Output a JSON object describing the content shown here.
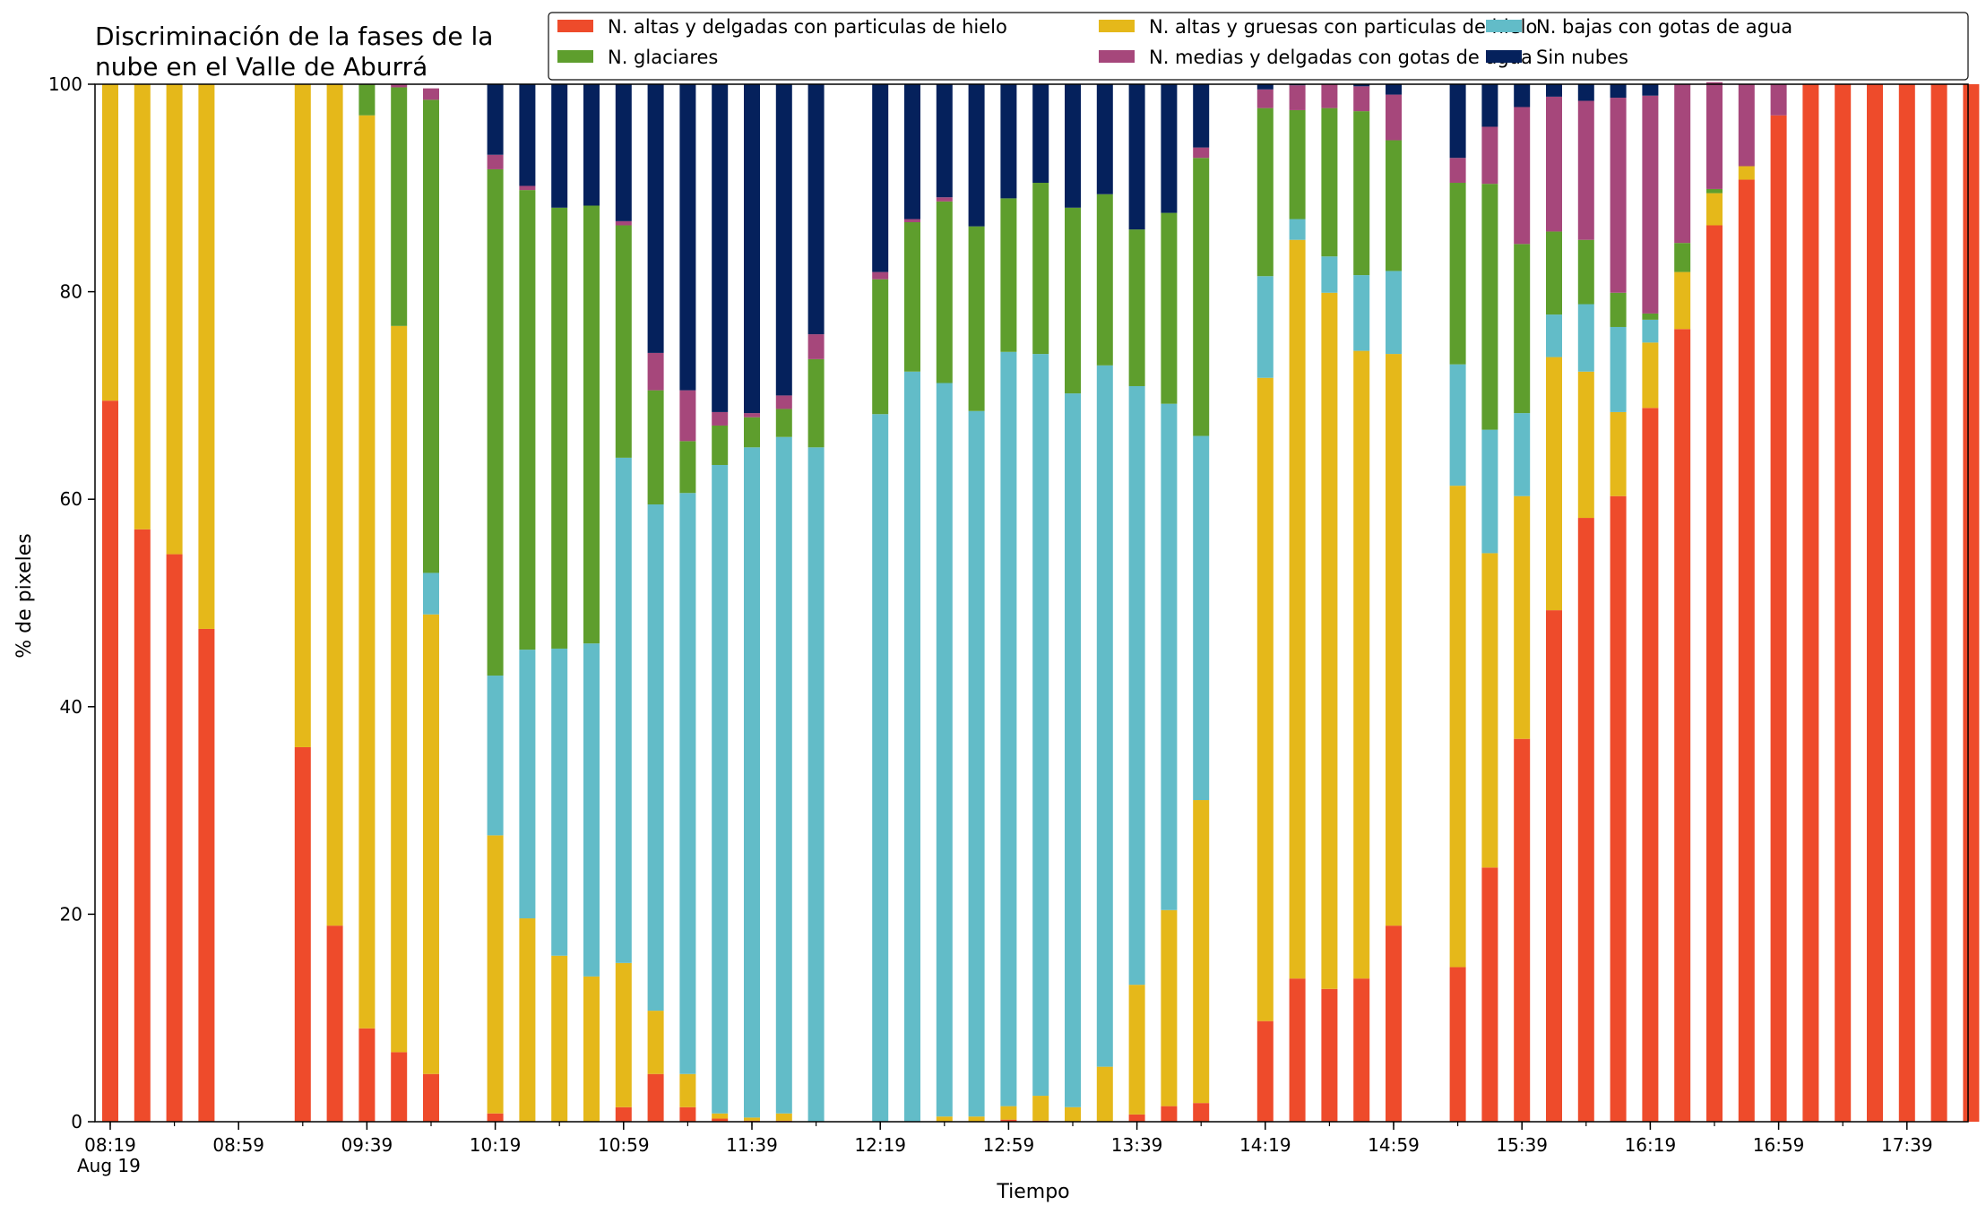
{
  "chart_data": {
    "type": "bar",
    "stacked": true,
    "title_lines": [
      "Discriminación de la fases de la",
      "nube en el Valle de Aburrá"
    ],
    "xlabel": "Tiempo",
    "ylabel": "% de pixeles",
    "ylim": [
      0,
      100
    ],
    "yticks": [
      "0",
      "20",
      "40",
      "60",
      "80",
      "100"
    ],
    "xticks": [
      {
        "label": "08:19",
        "sub": "Aug 19",
        "slot": 0
      },
      {
        "label": "08:59",
        "slot": 4
      },
      {
        "label": "09:39",
        "slot": 8
      },
      {
        "label": "10:19",
        "slot": 12
      },
      {
        "label": "10:59",
        "slot": 16
      },
      {
        "label": "11:39",
        "slot": 20
      },
      {
        "label": "12:19",
        "slot": 24
      },
      {
        "label": "12:59",
        "slot": 28
      },
      {
        "label": "13:39",
        "slot": 32
      },
      {
        "label": "14:19",
        "slot": 36
      },
      {
        "label": "14:59",
        "slot": 40
      },
      {
        "label": "15:39",
        "slot": 44
      },
      {
        "label": "16:19",
        "slot": 48
      },
      {
        "label": "16:59",
        "slot": 52
      },
      {
        "label": "17:39",
        "slot": 56
      }
    ],
    "x_slots": 59,
    "minutes_per_slot": 10,
    "legend_location": "upper right",
    "series": [
      {
        "name": "N. altas y delgadas con particulas de hielo",
        "color": "#ee4b2b",
        "values": [
          69.5,
          57.1,
          54.7,
          47.5,
          null,
          null,
          36.1,
          18.9,
          9.0,
          6.7,
          4.6,
          null,
          0.8,
          0,
          0,
          0,
          1.4,
          4.6,
          1.4,
          0.3,
          0.1,
          0.1,
          0,
          null,
          0,
          0,
          0,
          0,
          0.2,
          0.1,
          0,
          0,
          0.7,
          1.5,
          1.8,
          null,
          9.7,
          13.8,
          12.8,
          13.8,
          18.9,
          null,
          14.9,
          24.5,
          36.9,
          49.3,
          58.2,
          60.3,
          68.8,
          76.4,
          86.4,
          90.8,
          97.0,
          100,
          100,
          100,
          100,
          100,
          100
        ]
      },
      {
        "name": "N. altas y gruesas con particulas de hielo",
        "color": "#e5b81a",
        "values": [
          30.5,
          42.9,
          45.3,
          52.5,
          null,
          null,
          63.9,
          81.1,
          88.0,
          70.0,
          44.3,
          null,
          26.8,
          19.6,
          16.0,
          14.0,
          13.9,
          6.1,
          3.2,
          0.5,
          0.3,
          0.7,
          0,
          null,
          0,
          0,
          0.5,
          0.5,
          1.3,
          2.4,
          1.4,
          5.3,
          12.5,
          18.9,
          29.2,
          null,
          62.0,
          71.2,
          67.1,
          60.5,
          55.1,
          null,
          46.4,
          30.3,
          23.4,
          24.4,
          14.1,
          8.1,
          6.3,
          5.5,
          3.1,
          1.3,
          0,
          0,
          0,
          0,
          0,
          0,
          0
        ]
      },
      {
        "name": "N. bajas con gotas de agua",
        "color": "#62bcc8",
        "values": [
          0,
          0,
          0,
          0,
          null,
          null,
          0,
          0,
          0,
          0,
          4.0,
          null,
          15.4,
          25.9,
          29.6,
          32.1,
          48.7,
          48.8,
          56.0,
          62.5,
          64.6,
          65.2,
          65.0,
          null,
          68.2,
          72.3,
          70.7,
          68.0,
          72.7,
          71.5,
          68.8,
          67.6,
          57.7,
          48.8,
          35.1,
          null,
          9.8,
          2.0,
          3.5,
          7.3,
          8.0,
          null,
          11.7,
          11.9,
          8.0,
          4.1,
          6.5,
          8.2,
          2.2,
          0,
          0,
          0,
          0,
          0,
          0,
          0,
          0,
          0,
          0
        ]
      },
      {
        "name": "N. glaciares",
        "color": "#5e9e2d",
        "values": [
          0,
          0,
          0,
          0,
          null,
          null,
          0,
          0,
          3.0,
          23.0,
          45.6,
          null,
          48.8,
          44.3,
          42.5,
          42.2,
          22.4,
          11.0,
          5.0,
          3.8,
          2.9,
          2.7,
          8.5,
          null,
          13.0,
          14.4,
          17.5,
          17.8,
          14.8,
          16.5,
          17.9,
          16.5,
          15.1,
          18.4,
          26.8,
          null,
          16.2,
          10.5,
          14.3,
          15.8,
          12.6,
          null,
          17.5,
          23.7,
          16.3,
          8.0,
          6.2,
          3.3,
          0.6,
          2.8,
          0.4,
          0,
          0,
          0,
          0,
          0,
          0,
          0,
          0
        ]
      },
      {
        "name": "N. medias y delgadas con gotas de agua",
        "color": "#a6477b",
        "values": [
          0,
          0,
          0,
          0,
          null,
          null,
          0,
          0,
          0,
          0.3,
          1.1,
          null,
          1.4,
          0.4,
          0,
          0,
          0.4,
          3.6,
          4.9,
          1.3,
          0.4,
          1.3,
          2.4,
          null,
          0.7,
          0.3,
          0.4,
          0,
          0,
          0,
          0,
          0,
          0,
          0,
          1.0,
          null,
          1.8,
          2.4,
          2.3,
          2.4,
          4.4,
          null,
          2.4,
          5.5,
          13.2,
          13.0,
          13.4,
          18.8,
          21.0,
          15.3,
          10.3,
          7.9,
          3.0,
          0,
          0,
          0,
          0,
          0,
          0
        ]
      },
      {
        "name": "Sin nubes",
        "color": "#05215c",
        "values": [
          0,
          0,
          0,
          0,
          null,
          null,
          0,
          0,
          0,
          0,
          0,
          null,
          6.8,
          9.8,
          11.9,
          11.7,
          13.2,
          25.9,
          29.5,
          31.6,
          31.7,
          30.0,
          24.1,
          null,
          18.1,
          13.0,
          10.9,
          13.7,
          11.0,
          9.5,
          11.9,
          10.6,
          14.0,
          12.4,
          6.1,
          null,
          0.5,
          0.1,
          0,
          0.2,
          1.0,
          null,
          7.1,
          4.1,
          2.2,
          1.2,
          1.6,
          1.3,
          1.1,
          0,
          0,
          0,
          0,
          0,
          0,
          0,
          0,
          0,
          0
        ]
      }
    ]
  }
}
